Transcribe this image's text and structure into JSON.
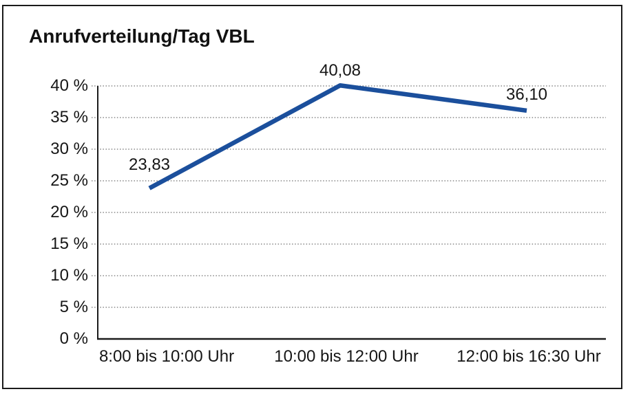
{
  "chart_data": {
    "type": "line",
    "title": "Anrufverteilung/Tag VBL",
    "categories": [
      "8:00 bis 10:00 Uhr",
      "10:00 bis 12:00 Uhr",
      "12:00 bis 16:30 Uhr"
    ],
    "values": [
      23.83,
      40.08,
      36.1
    ],
    "data_labels": [
      "23,83",
      "40,08",
      "36,10"
    ],
    "series_name": "Anrufverteilung",
    "xlabel": "",
    "ylabel": "",
    "ylim": [
      0,
      40
    ],
    "ytick_step": 5,
    "yticks": [
      {
        "value": 0,
        "label": "0 %"
      },
      {
        "value": 5,
        "label": "5 %"
      },
      {
        "value": 10,
        "label": "10 %"
      },
      {
        "value": 15,
        "label": "15 %"
      },
      {
        "value": 20,
        "label": "20 %"
      },
      {
        "value": 25,
        "label": "25 %"
      },
      {
        "value": 30,
        "label": "30 %"
      },
      {
        "value": 35,
        "label": "35 %"
      },
      {
        "value": 40,
        "label": "40 %"
      }
    ],
    "grid": "horizontal-dotted",
    "legend_position": "none",
    "colors": {
      "line": "#1b4f9c",
      "axis": "#1a1a1a",
      "gridline": "#6e6e6e",
      "text": "#161616",
      "frame_border": "#1a1a1a",
      "background": "#ffffff"
    }
  }
}
